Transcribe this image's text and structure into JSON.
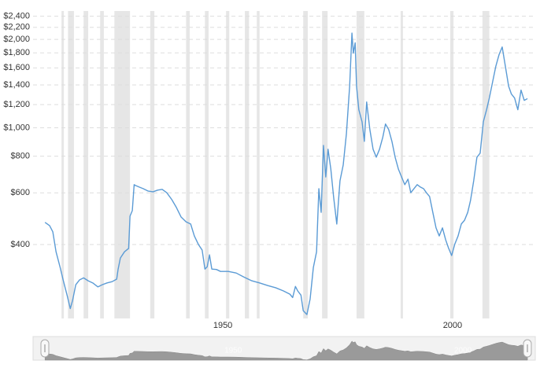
{
  "chart_data": {
    "type": "line",
    "log_scale_y": true,
    "grid": true,
    "xlim": [
      1908.7,
      2018
    ],
    "ylim": [
      224,
      2500
    ],
    "xticks": [
      1950,
      2000
    ],
    "yticks": [
      {
        "value": 400,
        "label": "$400"
      },
      {
        "value": 600,
        "label": "$600"
      },
      {
        "value": 800,
        "label": "$800"
      },
      {
        "value": 1000,
        "label": "$1,000"
      },
      {
        "value": 1200,
        "label": "$1,200"
      },
      {
        "value": 1400,
        "label": "$1,400"
      },
      {
        "value": 1600,
        "label": "$1,600"
      },
      {
        "value": 1800,
        "label": "$1,800"
      },
      {
        "value": 2000,
        "label": "$2,000"
      },
      {
        "value": 2200,
        "label": "$2,200"
      },
      {
        "value": 2400,
        "label": "$2,400"
      }
    ],
    "shaded_color": "#e6e6e6",
    "shaded_periods": [
      [
        1914.9,
        1915.4
      ],
      [
        1916.3,
        1917.6
      ],
      [
        1919.7,
        1920.7
      ],
      [
        1923.3,
        1924.1
      ],
      [
        1926.4,
        1929.8
      ],
      [
        1934.2,
        1935.1
      ],
      [
        1942.0,
        1942.8
      ],
      [
        1946.1,
        1946.9
      ],
      [
        1950.7,
        1951.4
      ],
      [
        1954.8,
        1955.7
      ],
      [
        1957.4,
        1958.0
      ],
      [
        1967.5,
        1968.5
      ],
      [
        1971.6,
        1972.8
      ],
      [
        1979.1,
        1980.8
      ],
      [
        1988.7,
        1989.2
      ],
      [
        1999.5,
        2000.2
      ],
      [
        2006.5,
        2008.0
      ]
    ],
    "series": [
      {
        "color": "#5b9bd5",
        "x": [
          1911.3,
          1912.3,
          1913.0,
          1913.7,
          1914.6,
          1915.2,
          1916.1,
          1916.8,
          1917.3,
          1918.0,
          1918.8,
          1919.7,
          1920.7,
          1921.7,
          1922.8,
          1923.8,
          1924.8,
          1925.9,
          1926.9,
          1927.2,
          1927.7,
          1928.6,
          1929.5,
          1929.8,
          1930.3,
          1930.7,
          1931.0,
          1931.8,
          1932.7,
          1933.7,
          1934.8,
          1935.8,
          1936.8,
          1937.8,
          1938.9,
          1939.9,
          1940.9,
          1942.0,
          1943.0,
          1943.8,
          1944.7,
          1945.5,
          1946.1,
          1946.6,
          1947.1,
          1947.6,
          1948.6,
          1949.5,
          1951.2,
          1952.9,
          1954.6,
          1956.3,
          1958.0,
          1959.8,
          1961.5,
          1963.2,
          1964.6,
          1965.2,
          1965.8,
          1966.3,
          1967.0,
          1967.5,
          1968.3,
          1969.0,
          1969.7,
          1970.4,
          1970.9,
          1971.4,
          1971.9,
          1972.4,
          1972.9,
          1973.5,
          1974.1,
          1974.8,
          1975.5,
          1976.2,
          1976.9,
          1977.6,
          1978.1,
          1978.4,
          1978.8,
          1979.1,
          1979.6,
          1980.3,
          1980.8,
          1981.3,
          1982.0,
          1982.7,
          1983.4,
          1984.1,
          1984.8,
          1985.4,
          1986.1,
          1986.8,
          1987.5,
          1988.2,
          1988.9,
          1989.6,
          1990.3,
          1990.9,
          1991.6,
          1992.3,
          1993.0,
          1993.7,
          1994.3,
          1995.0,
          1995.7,
          1996.4,
          1997.1,
          1997.8,
          1998.5,
          1999.1,
          1999.8,
          2000.5,
          2001.2,
          2001.9,
          2002.6,
          2003.3,
          2003.9,
          2004.6,
          2005.3,
          2006.0,
          2006.7,
          2007.4,
          2008.0,
          2008.7,
          2009.4,
          2010.1,
          2010.8,
          2011.5,
          2012.2,
          2012.8,
          2013.5,
          2014.2,
          2014.9,
          2015.6,
          2016.3
        ],
        "values": [
          476,
          464,
          442,
          378,
          334,
          305,
          269,
          242,
          258,
          292,
          303,
          308,
          301,
          296,
          287,
          292,
          296,
          299,
          305,
          329,
          360,
          378,
          388,
          500,
          522,
          640,
          636,
          628,
          620,
          609,
          605,
          613,
          617,
          601,
          569,
          535,
          497,
          478,
          470,
          428,
          400,
          383,
          330,
          336,
          369,
          330,
          329,
          324,
          324,
          320,
          310,
          301,
          296,
          290,
          285,
          278,
          271,
          264,
          288,
          278,
          269,
          238,
          231,
          261,
          334,
          378,
          620,
          515,
          871,
          680,
          845,
          724,
          583,
          470,
          660,
          747,
          956,
          1386,
          2103,
          1796,
          1948,
          1386,
          1152,
          1049,
          899,
          1224,
          986,
          845,
          794,
          845,
          927,
          1030,
          986,
          899,
          794,
          724,
          680,
          640,
          668,
          601,
          620,
          640,
          628,
          620,
          601,
          583,
          515,
          456,
          428,
          456,
          415,
          390,
          367,
          402,
          428,
          470,
          484,
          515,
          565,
          660,
          794,
          819,
          1049,
          1152,
          1263,
          1429,
          1617,
          1772,
          1885,
          1617,
          1386,
          1303,
          1263,
          1152,
          1344,
          1240,
          1257
        ]
      }
    ]
  }
}
